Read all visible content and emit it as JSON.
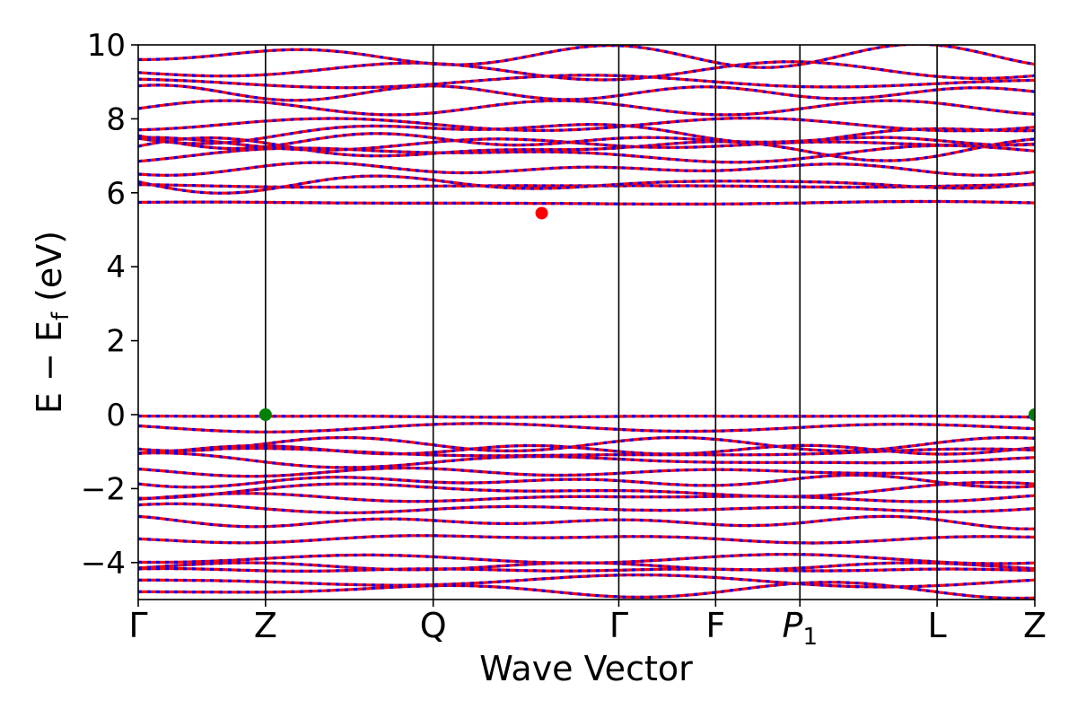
{
  "chart_data": {
    "type": "line",
    "title": "",
    "xlabel": "Wave Vector",
    "ylabel": "E − E_f (eV)",
    "ylabel_parts": {
      "main": "E − E",
      "sub": "f",
      "unit": " (eV)"
    },
    "ylim": [
      -5,
      10
    ],
    "yticks": [
      -4,
      -2,
      0,
      2,
      4,
      6,
      8,
      10
    ],
    "ytick_labels": [
      "−4",
      "−2",
      "0",
      "2",
      "4",
      "6",
      "8",
      "10"
    ],
    "grid": false,
    "legend": "none",
    "high_symmetry_points": [
      {
        "label": "Γ",
        "sub": "",
        "x": 0.0
      },
      {
        "label": "Z",
        "sub": "",
        "x": 0.142
      },
      {
        "label": "Q",
        "sub": "",
        "x": 0.329
      },
      {
        "label": "Γ",
        "sub": "",
        "x": 0.536
      },
      {
        "label": "F",
        "sub": "",
        "x": 0.644
      },
      {
        "label": "P",
        "sub": "1",
        "x": 0.738
      },
      {
        "label": "L",
        "sub": "",
        "x": 0.891
      },
      {
        "label": "Z",
        "sub": "",
        "x": 1.0
      }
    ],
    "band_style": {
      "solid_color": "#ff0000",
      "dash_color": "#0000ff"
    },
    "conduction_bands": [
      5.72,
      6.18,
      6.25,
      6.65,
      7.05,
      7.18,
      7.32,
      7.42,
      7.65,
      7.85,
      8.3,
      8.7,
      9.0,
      9.3,
      9.7
    ],
    "valence_bands": [
      -0.05,
      -0.35,
      -0.8,
      -0.95,
      -1.05,
      -1.25,
      -1.55,
      -1.8,
      -2.05,
      -2.25,
      -2.55,
      -2.9,
      -3.35,
      -3.9,
      -4.1,
      -4.2,
      -4.5,
      -4.75
    ],
    "cbm_marker": {
      "x": 0.45,
      "y": 5.45,
      "color": "#ff0000"
    },
    "vbm_markers": [
      {
        "x": 0.142,
        "y": 0.0,
        "color": "#008000"
      },
      {
        "x": 1.0,
        "y": 0.0,
        "color": "#008000"
      }
    ]
  }
}
